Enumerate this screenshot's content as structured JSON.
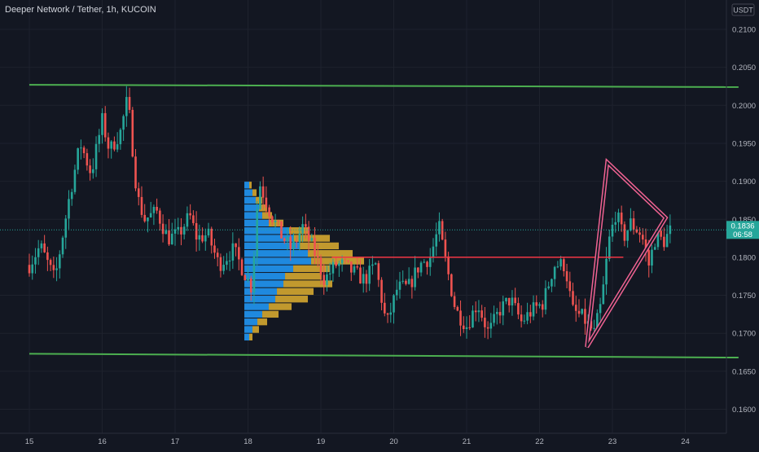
{
  "chart_data": {
    "type": "candlestick",
    "title": "Deeper Network / Tether, 1h, KUCOIN",
    "currency": "USDT",
    "last_price": "0.1836",
    "countdown": "06:58",
    "y_ticks": [
      "0.2100",
      "0.2050",
      "0.2000",
      "0.1950",
      "0.1900",
      "0.1850",
      "0.1800",
      "0.1750",
      "0.1700",
      "0.1650",
      "0.1600"
    ],
    "x_ticks": [
      "15",
      "16",
      "17",
      "18",
      "19",
      "20",
      "21",
      "22",
      "23",
      "24"
    ],
    "ylim": [
      0.1555,
      0.2135
    ],
    "colors": {
      "up": "#26a69a",
      "down": "#ef5350",
      "support": "#4caf50",
      "level": "#f23645",
      "pattern": "#f06292",
      "vp_up": "#2196f3",
      "vp_down": "#e0b030"
    },
    "annotations": {
      "upper_channel": [
        [
          0.0,
          0.2027
        ],
        [
          9.73,
          0.2024
        ]
      ],
      "lower_channel": [
        [
          0.0,
          0.1673
        ],
        [
          9.73,
          0.1668
        ]
      ],
      "resistance_level": {
        "from": 4.15,
        "to": 8.15,
        "y": 0.18
      },
      "pattern_triangle": [
        [
          7.65,
          0.1682
        ],
        [
          7.93,
          0.1925
        ],
        [
          8.73,
          0.1852
        ]
      ],
      "volume_profile": [
        {
          "y": 0.1895,
          "up": 6,
          "down": 3
        },
        {
          "y": 0.1885,
          "up": 10,
          "down": 5
        },
        {
          "y": 0.1875,
          "up": 14,
          "down": 8
        },
        {
          "y": 0.1865,
          "up": 18,
          "down": 10
        },
        {
          "y": 0.1855,
          "up": 22,
          "down": 12
        },
        {
          "y": 0.1845,
          "up": 30,
          "down": 18
        },
        {
          "y": 0.1835,
          "up": 55,
          "down": 25
        },
        {
          "y": 0.1825,
          "up": 60,
          "down": 45
        },
        {
          "y": 0.1815,
          "up": 68,
          "down": 48
        },
        {
          "y": 0.1805,
          "up": 78,
          "down": 55
        },
        {
          "y": 0.1795,
          "up": 82,
          "down": 65
        },
        {
          "y": 0.1785,
          "up": 60,
          "down": 45
        },
        {
          "y": 0.1775,
          "up": 50,
          "down": 45
        },
        {
          "y": 0.1765,
          "up": 48,
          "down": 60
        },
        {
          "y": 0.1755,
          "up": 40,
          "down": 45
        },
        {
          "y": 0.1745,
          "up": 38,
          "down": 40
        },
        {
          "y": 0.1735,
          "up": 30,
          "down": 28
        },
        {
          "y": 0.1725,
          "up": 22,
          "down": 20
        },
        {
          "y": 0.1715,
          "up": 16,
          "down": 12
        },
        {
          "y": 0.1705,
          "up": 10,
          "down": 8
        },
        {
          "y": 0.1695,
          "up": 6,
          "down": 4
        }
      ]
    },
    "anchors": [
      [
        0,
        0.179
      ],
      [
        0.15,
        0.1815
      ],
      [
        0.35,
        0.177
      ],
      [
        0.55,
        0.188
      ],
      [
        0.7,
        0.195
      ],
      [
        0.85,
        0.191
      ],
      [
        1.0,
        0.198
      ],
      [
        1.1,
        0.194
      ],
      [
        1.25,
        0.1965
      ],
      [
        1.35,
        0.201
      ],
      [
        1.48,
        0.188
      ],
      [
        1.58,
        0.185
      ],
      [
        1.75,
        0.186
      ],
      [
        1.9,
        0.1825
      ],
      [
        2.05,
        0.183
      ],
      [
        2.2,
        0.1855
      ],
      [
        2.3,
        0.1825
      ],
      [
        2.45,
        0.183
      ],
      [
        2.6,
        0.179
      ],
      [
        2.8,
        0.181
      ],
      [
        2.95,
        0.178
      ],
      [
        3.05,
        0.176
      ],
      [
        3.15,
        0.19
      ],
      [
        3.3,
        0.186
      ],
      [
        3.45,
        0.183
      ],
      [
        3.6,
        0.181
      ],
      [
        3.75,
        0.184
      ],
      [
        3.9,
        0.181
      ],
      [
        4.05,
        0.177
      ],
      [
        4.2,
        0.179
      ],
      [
        4.3,
        0.179
      ],
      [
        4.45,
        0.178
      ],
      [
        4.6,
        0.177
      ],
      [
        4.75,
        0.179
      ],
      [
        4.9,
        0.171
      ],
      [
        5.05,
        0.176
      ],
      [
        5.2,
        0.176
      ],
      [
        5.35,
        0.179
      ],
      [
        5.5,
        0.18
      ],
      [
        5.62,
        0.184
      ],
      [
        5.7,
        0.18
      ],
      [
        5.85,
        0.173
      ],
      [
        6.0,
        0.171
      ],
      [
        6.15,
        0.174
      ],
      [
        6.3,
        0.17
      ],
      [
        6.45,
        0.173
      ],
      [
        6.6,
        0.1745
      ],
      [
        6.75,
        0.1715
      ],
      [
        6.9,
        0.173
      ],
      [
        7.05,
        0.174
      ],
      [
        7.2,
        0.179
      ],
      [
        7.35,
        0.179
      ],
      [
        7.45,
        0.173
      ],
      [
        7.6,
        0.172
      ],
      [
        7.75,
        0.17
      ],
      [
        7.85,
        0.174
      ],
      [
        7.95,
        0.182
      ],
      [
        8.05,
        0.186
      ],
      [
        8.15,
        0.1825
      ],
      [
        8.25,
        0.1845
      ],
      [
        8.4,
        0.183
      ],
      [
        8.5,
        0.179
      ],
      [
        8.6,
        0.183
      ],
      [
        8.7,
        0.182
      ],
      [
        8.8,
        0.1836
      ]
    ]
  }
}
